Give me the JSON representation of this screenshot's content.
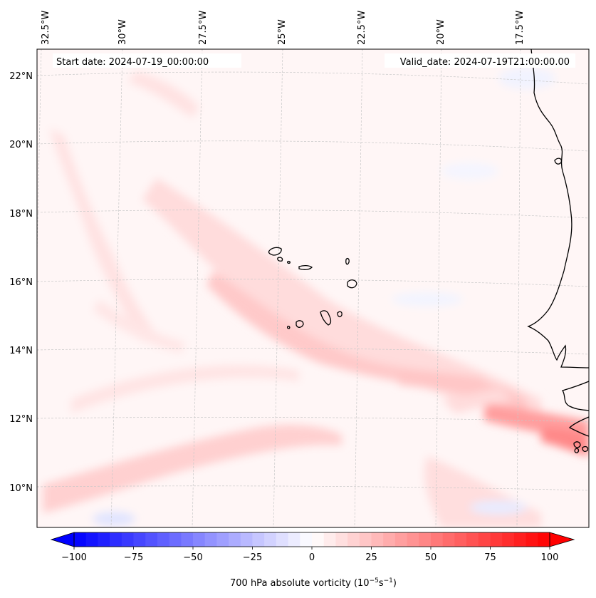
{
  "header": {
    "start_date": "Start date: 2024-07-19_00:00:00",
    "valid_date": "Valid_date: 2024-07-19T21:00:00.00"
  },
  "map": {
    "lon_labels": [
      "32.5°W",
      "30°W",
      "27.5°W",
      "25°W",
      "22.5°W",
      "20°W",
      "17.5°W"
    ],
    "lat_labels": [
      "22°N",
      "20°N",
      "18°N",
      "16°N",
      "14°N",
      "12°N",
      "10°N"
    ],
    "land_color": "#000000",
    "grid_color": "#c8c8c8"
  },
  "colorbar": {
    "label_prefix": "700 hPa absolute vorticity (10",
    "label_exp1": "−5",
    "label_mid": "s",
    "label_exp2": "−1",
    "label_suffix": ")",
    "ticks": [
      "−100",
      "−75",
      "−50",
      "−25",
      "0",
      "25",
      "50",
      "75",
      "100"
    ],
    "min": -100,
    "max": 100,
    "step": 5,
    "neg_color": "#0000ff",
    "pos_color": "#ff0000"
  }
}
